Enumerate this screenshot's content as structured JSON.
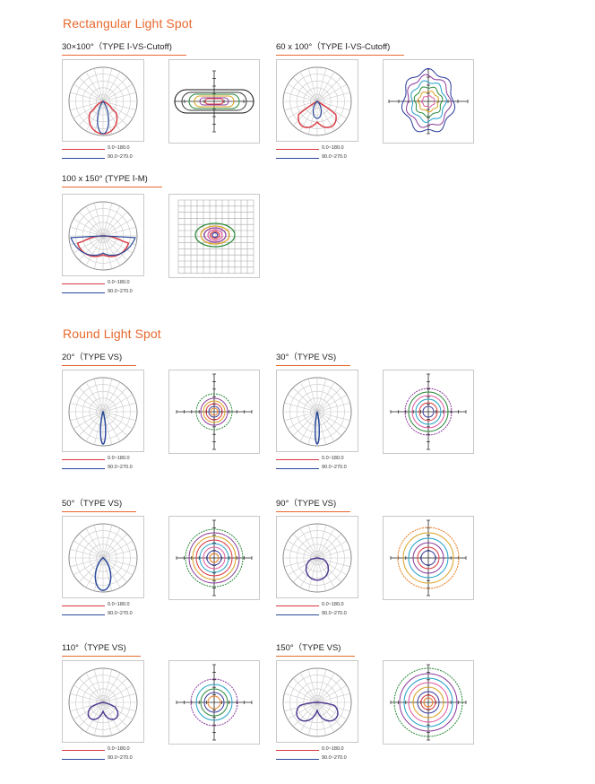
{
  "sections": {
    "rect": {
      "title": "Rectangular Light Spot"
    },
    "round": {
      "title": "Round Light Spot"
    }
  },
  "colors": {
    "accent": "#e8692e",
    "curve_0_180": "#d9363e",
    "curve_90_270": "#2a4a9a"
  },
  "legend": {
    "series_a": "0.0~180.0",
    "series_b": "90.0~270.0"
  },
  "blocks": [
    {
      "id": "b1",
      "label": "30×100°（TYPE Ⅰ-VS-Cutoff)"
    },
    {
      "id": "b2",
      "label": "60 x 100°（TYPE Ⅰ-VS-Cutoff)"
    },
    {
      "id": "b3",
      "label": "100 x 150° (TYPE Ⅰ-M)"
    },
    {
      "id": "b4",
      "label": "20°（TYPE VS)"
    },
    {
      "id": "b5",
      "label": "30°（TYPE VS)"
    },
    {
      "id": "b6",
      "label": "50°（TYPE VS)"
    },
    {
      "id": "b7",
      "label": "90°（TYPE VS)"
    },
    {
      "id": "b8",
      "label": "110°（TYPE VS)"
    },
    {
      "id": "b9",
      "label": "150°（TYPE VS)"
    }
  ]
}
